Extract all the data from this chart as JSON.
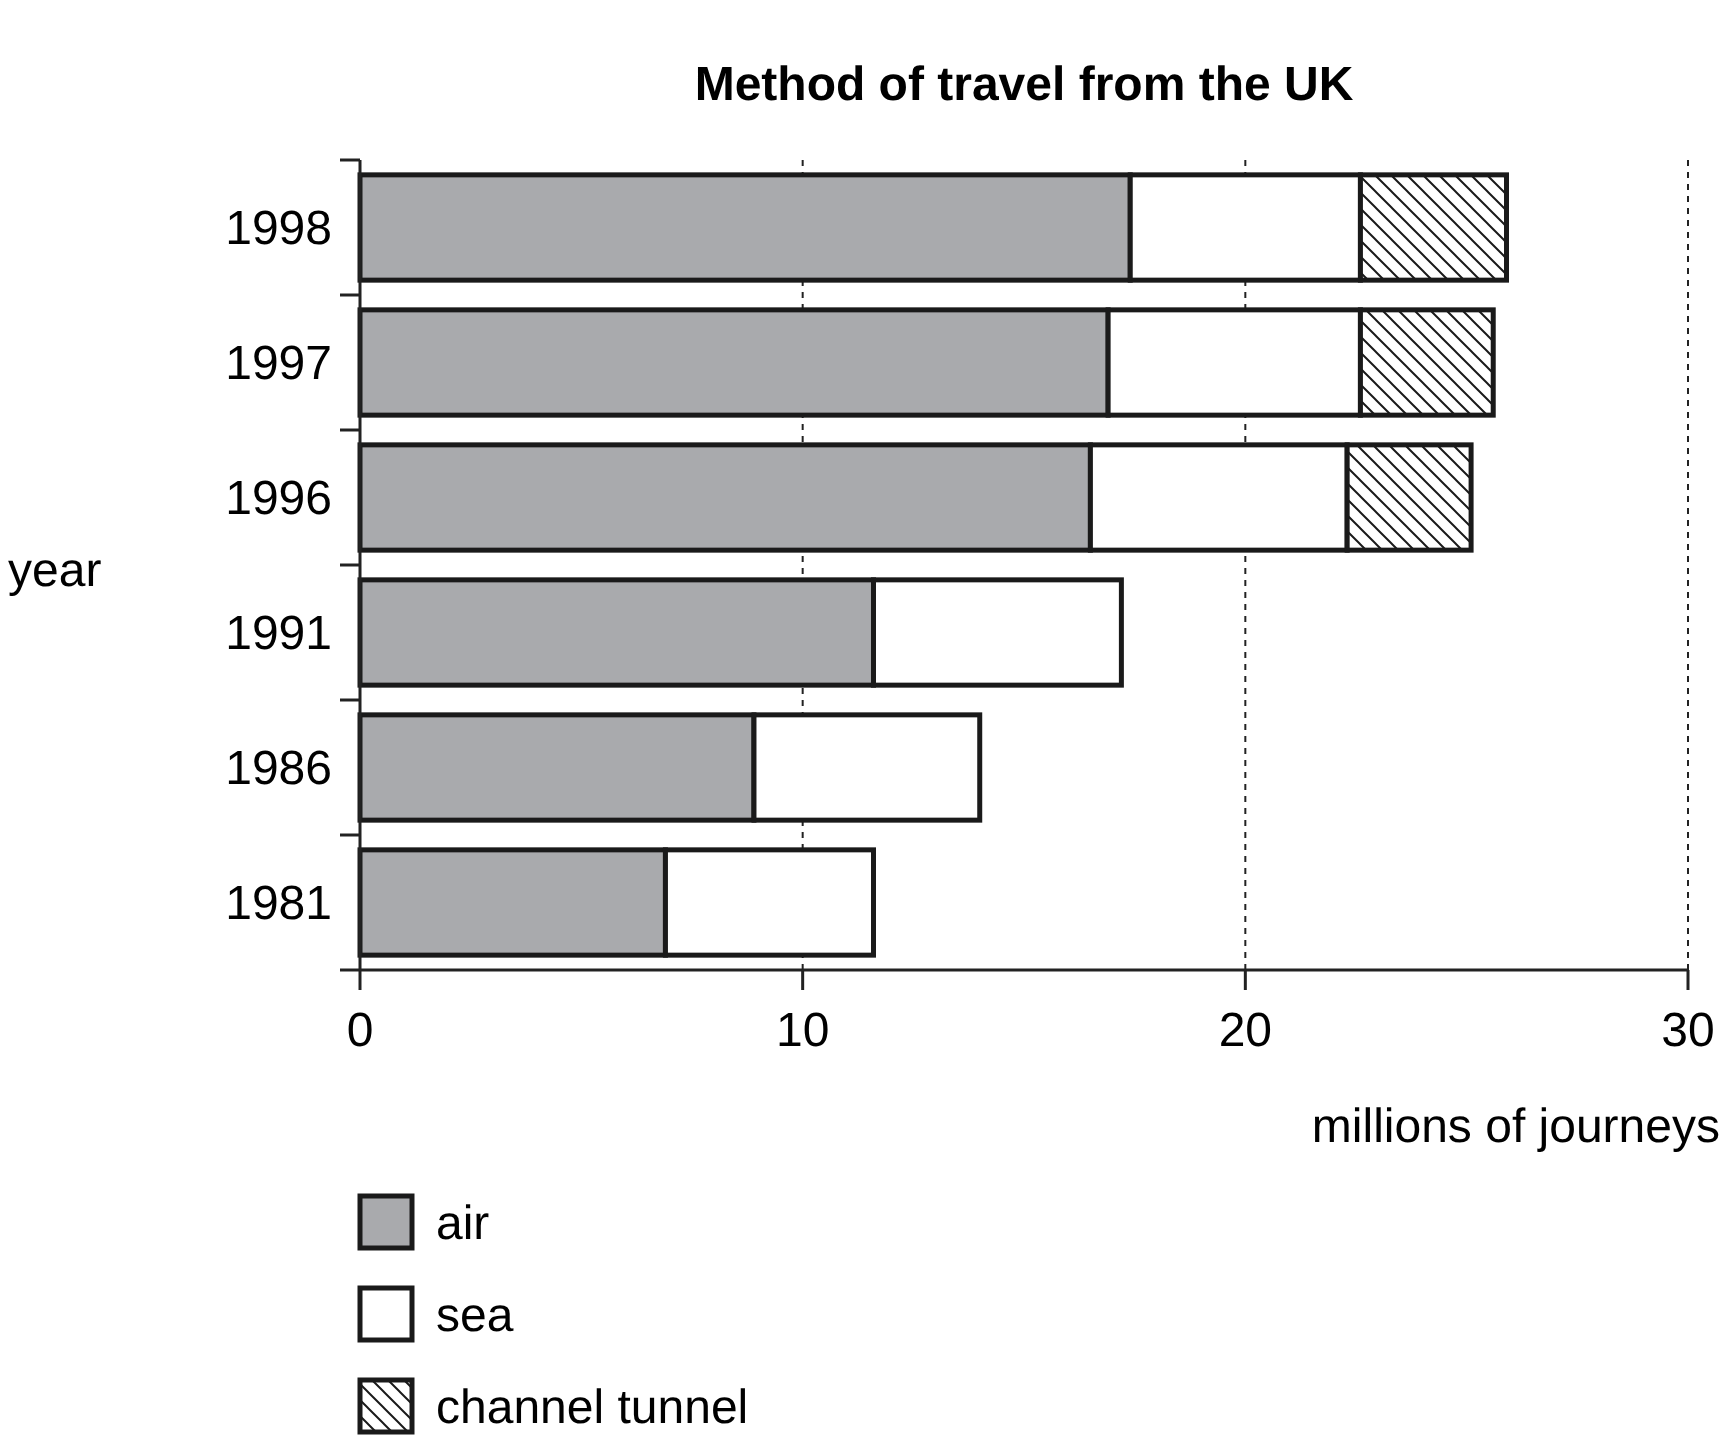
{
  "chart_data": {
    "type": "bar",
    "orientation": "horizontal",
    "stacked": true,
    "title": "Method of travel from the UK",
    "xlabel": "millions of journeys",
    "ylabel": "year",
    "categories": [
      "1998",
      "1997",
      "1996",
      "1991",
      "1986",
      "1981"
    ],
    "series": [
      {
        "name": "air",
        "color": "#a9aaad",
        "values": [
          17.4,
          16.9,
          16.5,
          11.6,
          8.9,
          6.9
        ]
      },
      {
        "name": "sea",
        "color": "#ffffff",
        "values": [
          5.2,
          5.7,
          5.8,
          5.6,
          5.1,
          4.7
        ]
      },
      {
        "name": "channel tunnel",
        "color": "#1a1a1a",
        "values": [
          3.3,
          3.0,
          2.8,
          null,
          null,
          null
        ]
      }
    ],
    "xlim": [
      0,
      30
    ],
    "xticks": [
      0,
      10,
      20,
      30
    ],
    "grid": "x",
    "legend": "bottom"
  }
}
